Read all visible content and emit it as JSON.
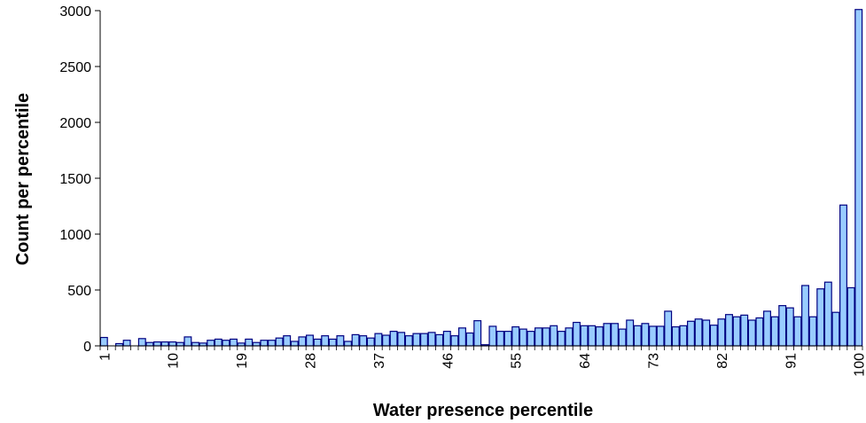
{
  "chart_data": {
    "type": "bar",
    "xlabel": "Water presence percentile",
    "ylabel": "Count per percentile",
    "ylim": [
      0,
      3000
    ],
    "yticks": [
      0,
      500,
      1000,
      1500,
      2000,
      2500,
      3000
    ],
    "xtick_labels": [
      "1",
      "10",
      "19",
      "28",
      "37",
      "46",
      "55",
      "64",
      "73",
      "82",
      "91",
      "100"
    ],
    "categories": [
      1,
      2,
      3,
      4,
      5,
      6,
      7,
      8,
      9,
      10,
      11,
      12,
      13,
      14,
      15,
      16,
      17,
      18,
      19,
      20,
      21,
      22,
      23,
      24,
      25,
      26,
      27,
      28,
      29,
      30,
      31,
      32,
      33,
      34,
      35,
      36,
      37,
      38,
      39,
      40,
      41,
      42,
      43,
      44,
      45,
      46,
      47,
      48,
      49,
      50,
      51,
      52,
      53,
      54,
      55,
      56,
      57,
      58,
      59,
      60,
      61,
      62,
      63,
      64,
      65,
      66,
      67,
      68,
      69,
      70,
      71,
      72,
      73,
      74,
      75,
      76,
      77,
      78,
      79,
      80,
      81,
      82,
      83,
      84,
      85,
      86,
      87,
      88,
      89,
      90,
      91,
      92,
      93,
      94,
      95,
      96,
      97,
      98,
      99,
      100
    ],
    "values": [
      75,
      0,
      20,
      50,
      0,
      65,
      30,
      35,
      35,
      35,
      30,
      80,
      30,
      25,
      50,
      60,
      50,
      60,
      25,
      60,
      30,
      50,
      50,
      70,
      90,
      40,
      80,
      95,
      60,
      90,
      60,
      90,
      40,
      100,
      90,
      70,
      110,
      95,
      130,
      120,
      90,
      110,
      110,
      120,
      100,
      130,
      90,
      160,
      115,
      225,
      10,
      175,
      130,
      130,
      170,
      150,
      130,
      160,
      160,
      180,
      130,
      160,
      210,
      180,
      180,
      170,
      200,
      200,
      150,
      230,
      180,
      200,
      175,
      175,
      310,
      170,
      180,
      220,
      240,
      230,
      185,
      240,
      280,
      260,
      275,
      230,
      250,
      310,
      260,
      360,
      340,
      260,
      540,
      260,
      510,
      570,
      300,
      1260,
      520,
      3010
    ],
    "bar_color": "#99ccff",
    "bar_edge_color": "#000080",
    "grid": false,
    "legend": "none"
  }
}
